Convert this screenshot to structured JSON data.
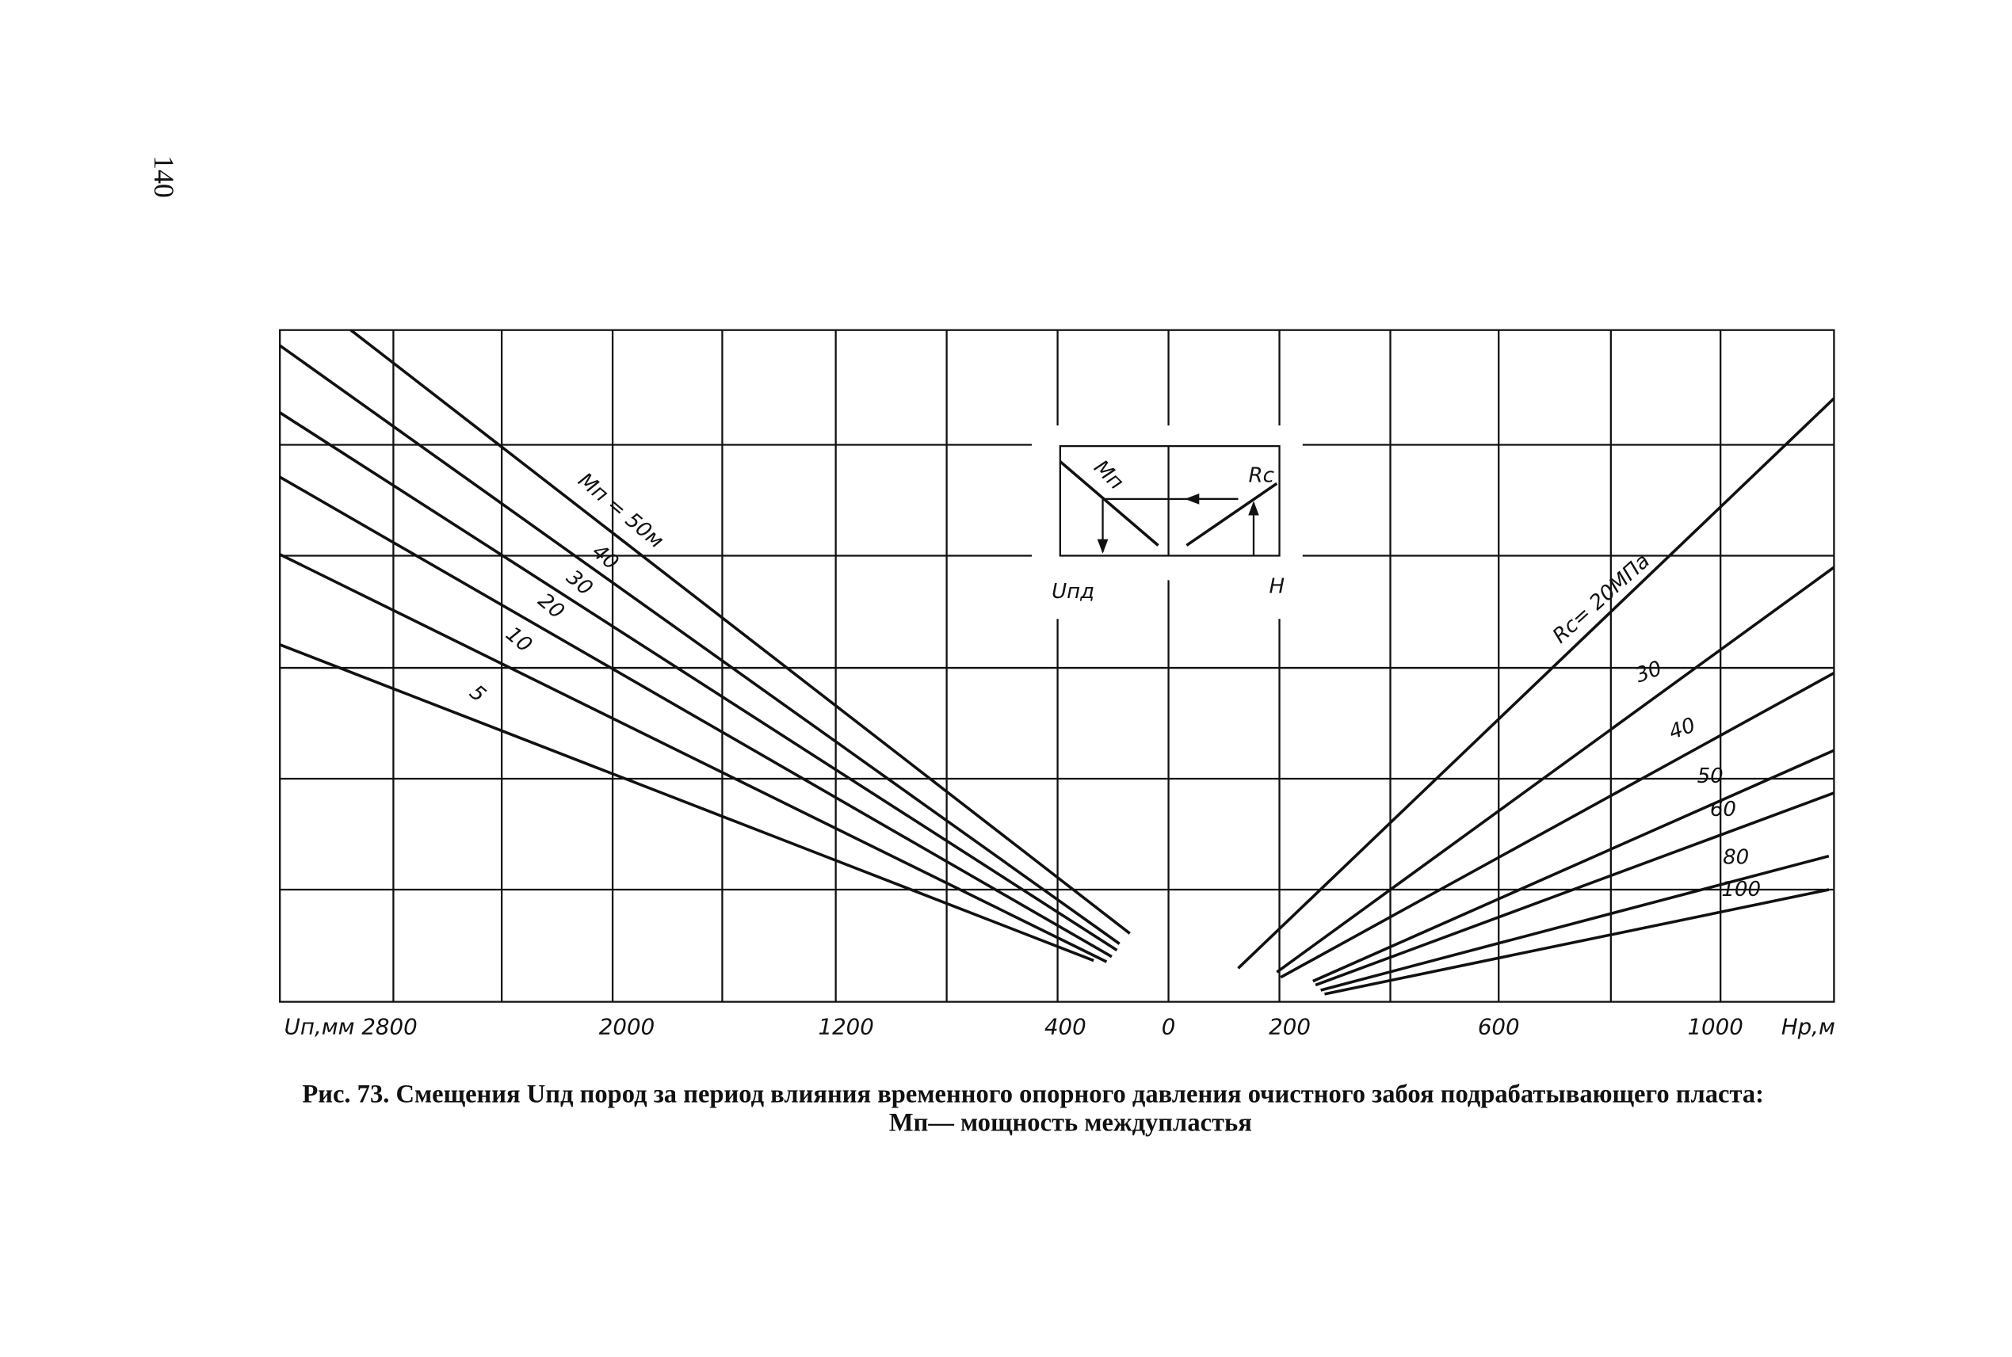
{
  "page_number": "140",
  "figure": {
    "x_axis_labels": [
      "Uп,мм 2800",
      "2000",
      "1200",
      "400",
      "0",
      "200",
      "600",
      "1000",
      "Hр,м"
    ],
    "left_curve_labels": [
      "Mп = 50м",
      "40",
      "30",
      "20",
      "10",
      "5"
    ],
    "right_curve_labels": [
      "Rc= 20МПа",
      "30",
      "40",
      "50",
      "60",
      "80",
      "100"
    ],
    "inset_labels": [
      "Mп",
      "Rc",
      "Uпд",
      "H"
    ]
  },
  "caption": {
    "line1": "Рис. 73. Смещения Uпд пород за период влияния временного опорного давления очистного забоя подрабатывающего пласта:",
    "line2": "Mп— мощность междупластья"
  }
}
